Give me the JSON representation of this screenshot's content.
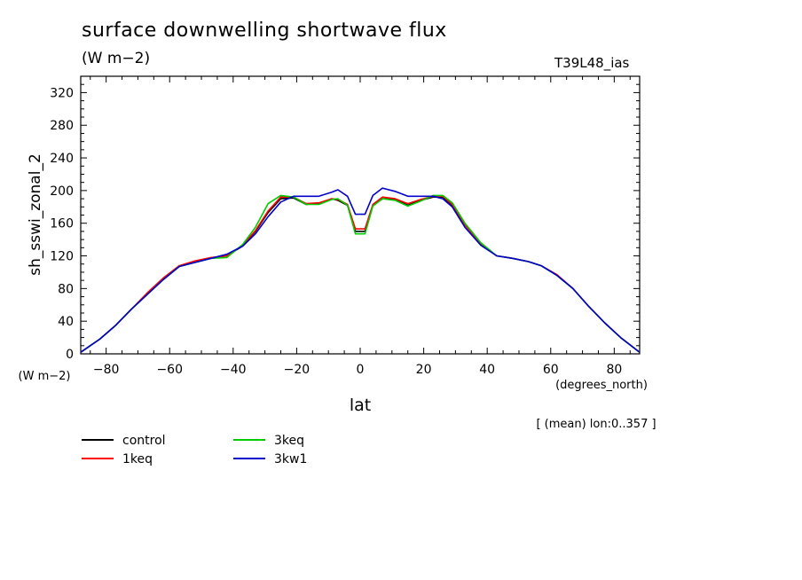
{
  "header": {
    "title": "surface downwelling shortwave flux",
    "units": "(W m−2)",
    "run_label": "T39L48_ias"
  },
  "chart_data": {
    "type": "line",
    "title": "surface downwelling shortwave flux",
    "xlabel": "lat",
    "xunits": "(degrees_north)",
    "ylabel": "sh_sswi_zonal_2",
    "yunits": "(W m−2)",
    "annotation": "[ (mean) lon:0..357 ]",
    "xlim": [
      -88,
      88
    ],
    "ylim": [
      0,
      340
    ],
    "xticks": [
      -80,
      -60,
      -40,
      -20,
      0,
      20,
      40,
      60,
      80
    ],
    "yticks": [
      0,
      40,
      80,
      120,
      160,
      200,
      240,
      280,
      320
    ],
    "grid": false,
    "legend_position": "bottom-left",
    "x": [
      -88,
      -82,
      -77,
      -72,
      -67,
      -62,
      -57,
      -52,
      -47,
      -42,
      -37,
      -33,
      -29,
      -25,
      -21,
      -17,
      -13,
      -9,
      -7,
      -4,
      -1.5,
      1.5,
      4,
      7,
      11,
      15,
      19,
      23,
      26,
      29,
      33,
      38,
      43,
      48,
      53,
      57,
      62,
      67,
      72,
      77,
      82,
      88
    ],
    "series": [
      {
        "name": "control",
        "color": "#000000",
        "values": [
          2,
          18,
          35,
          55,
          73,
          91,
          107,
          112,
          117,
          120,
          132,
          150,
          173,
          190,
          191,
          183,
          184,
          190,
          188,
          182,
          150,
          150,
          182,
          190,
          189,
          182,
          188,
          192,
          192,
          182,
          158,
          135,
          120,
          117,
          113,
          108,
          96,
          80,
          58,
          38,
          20,
          2
        ]
      },
      {
        "name": "1keq",
        "color": "#ff0000",
        "values": [
          2,
          18,
          35,
          55,
          75,
          93,
          108,
          114,
          118,
          120,
          133,
          151,
          175,
          192,
          192,
          184,
          185,
          190,
          189,
          183,
          153,
          153,
          183,
          192,
          190,
          184,
          189,
          193,
          193,
          183,
          158,
          135,
          120,
          117,
          113,
          108,
          97,
          80,
          58,
          38,
          20,
          2
        ]
      },
      {
        "name": "3keq",
        "color": "#00cc00",
        "values": [
          2,
          18,
          35,
          55,
          73,
          91,
          107,
          112,
          117,
          118,
          134,
          155,
          184,
          194,
          192,
          183,
          183,
          189,
          190,
          182,
          147,
          147,
          181,
          190,
          188,
          181,
          187,
          194,
          194,
          185,
          160,
          136,
          120,
          117,
          113,
          108,
          96,
          80,
          58,
          38,
          20,
          2
        ]
      },
      {
        "name": "3kw1",
        "color": "#0000cc",
        "values": [
          2,
          18,
          35,
          55,
          73,
          91,
          107,
          112,
          117,
          122,
          132,
          147,
          168,
          186,
          193,
          193,
          193,
          198,
          201,
          193,
          171,
          171,
          194,
          203,
          199,
          193,
          193,
          193,
          190,
          180,
          155,
          133,
          120,
          117,
          113,
          108,
          96,
          80,
          58,
          38,
          20,
          2
        ]
      }
    ]
  }
}
